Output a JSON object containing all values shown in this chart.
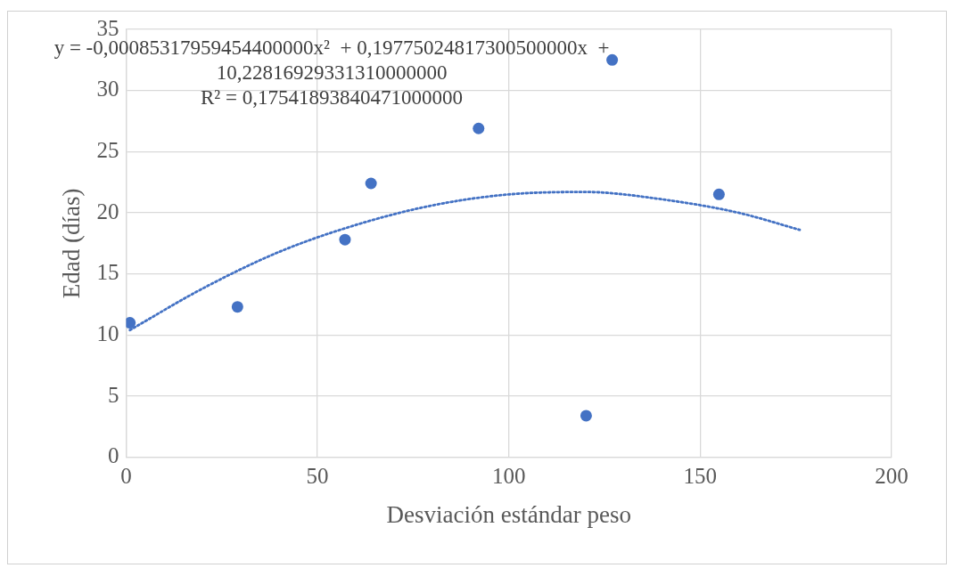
{
  "chart_data": {
    "type": "scatter",
    "xlabel": "Desviación estándar peso",
    "ylabel": "Edad (días)",
    "marker": "circle",
    "series": [
      {
        "color": "#4472c4",
        "x": [
          1.0,
          29.1,
          57.2,
          64.0,
          92.1,
          120.2,
          127.0,
          154.9
        ],
        "values": [
          11.0,
          12.3,
          17.8,
          22.4,
          26.9,
          3.4,
          32.5,
          21.5
        ]
      },
      {
        "type": "line",
        "color": "#4472c4",
        "marker": "none",
        "line_style": "dotted",
        "x": [
          1,
          20,
          40,
          60,
          80,
          100,
          120,
          140,
          160,
          176
        ],
        "values": [
          10.4,
          13.8,
          16.8,
          19.0,
          20.6,
          21.5,
          21.7,
          21.1,
          20.0,
          18.6
        ]
      }
    ],
    "xlim": [
      0,
      200
    ],
    "xticks": [
      0,
      50,
      100,
      150,
      200
    ],
    "ylim": [
      0,
      35
    ],
    "yticks": [
      0,
      5,
      10,
      15,
      20,
      25,
      30,
      35
    ],
    "grid": true,
    "annotations": [
      "y = -0,00085317959454400000x²  + 0,19775024817300500000x  + 10,22816929331310000000",
      "R² = 0,17541893840471000000"
    ]
  }
}
